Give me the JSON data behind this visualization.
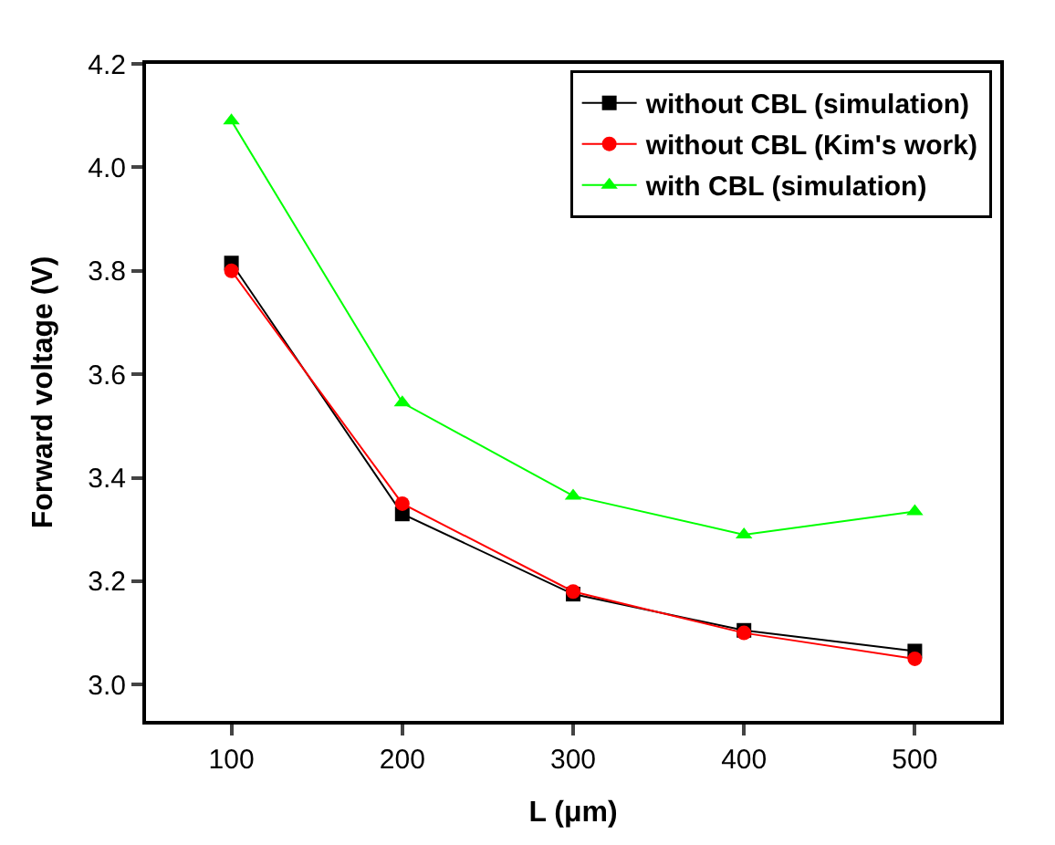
{
  "chart_data": {
    "type": "line",
    "xlabel": "L (μm)",
    "ylabel": "Forward voltage (V)",
    "x": [
      100,
      200,
      300,
      400,
      500
    ],
    "series": [
      {
        "name": "without CBL (simulation)",
        "color": "#000000",
        "marker": "square",
        "values": [
          3.815,
          3.33,
          3.175,
          3.105,
          3.065
        ]
      },
      {
        "name": "without CBL (Kim's work)",
        "color": "#ff0000",
        "marker": "circle",
        "values": [
          3.8,
          3.35,
          3.18,
          3.1,
          3.05
        ]
      },
      {
        "name": "with CBL (simulation)",
        "color": "#00ff00",
        "marker": "triangle",
        "values": [
          4.09,
          3.545,
          3.365,
          3.29,
          3.335
        ]
      }
    ],
    "xlim": [
      50,
      550
    ],
    "xticks": [
      100,
      200,
      300,
      400,
      500
    ],
    "ylim": [
      2.93,
      4.2
    ],
    "yticks": [
      {
        "value": 3.0,
        "label": "3.0"
      },
      3.2,
      3.4,
      3.6,
      3.8,
      {
        "value": 4.0,
        "label": "4.0"
      },
      4.2
    ],
    "legend": "top right",
    "line_style": "solid"
  }
}
